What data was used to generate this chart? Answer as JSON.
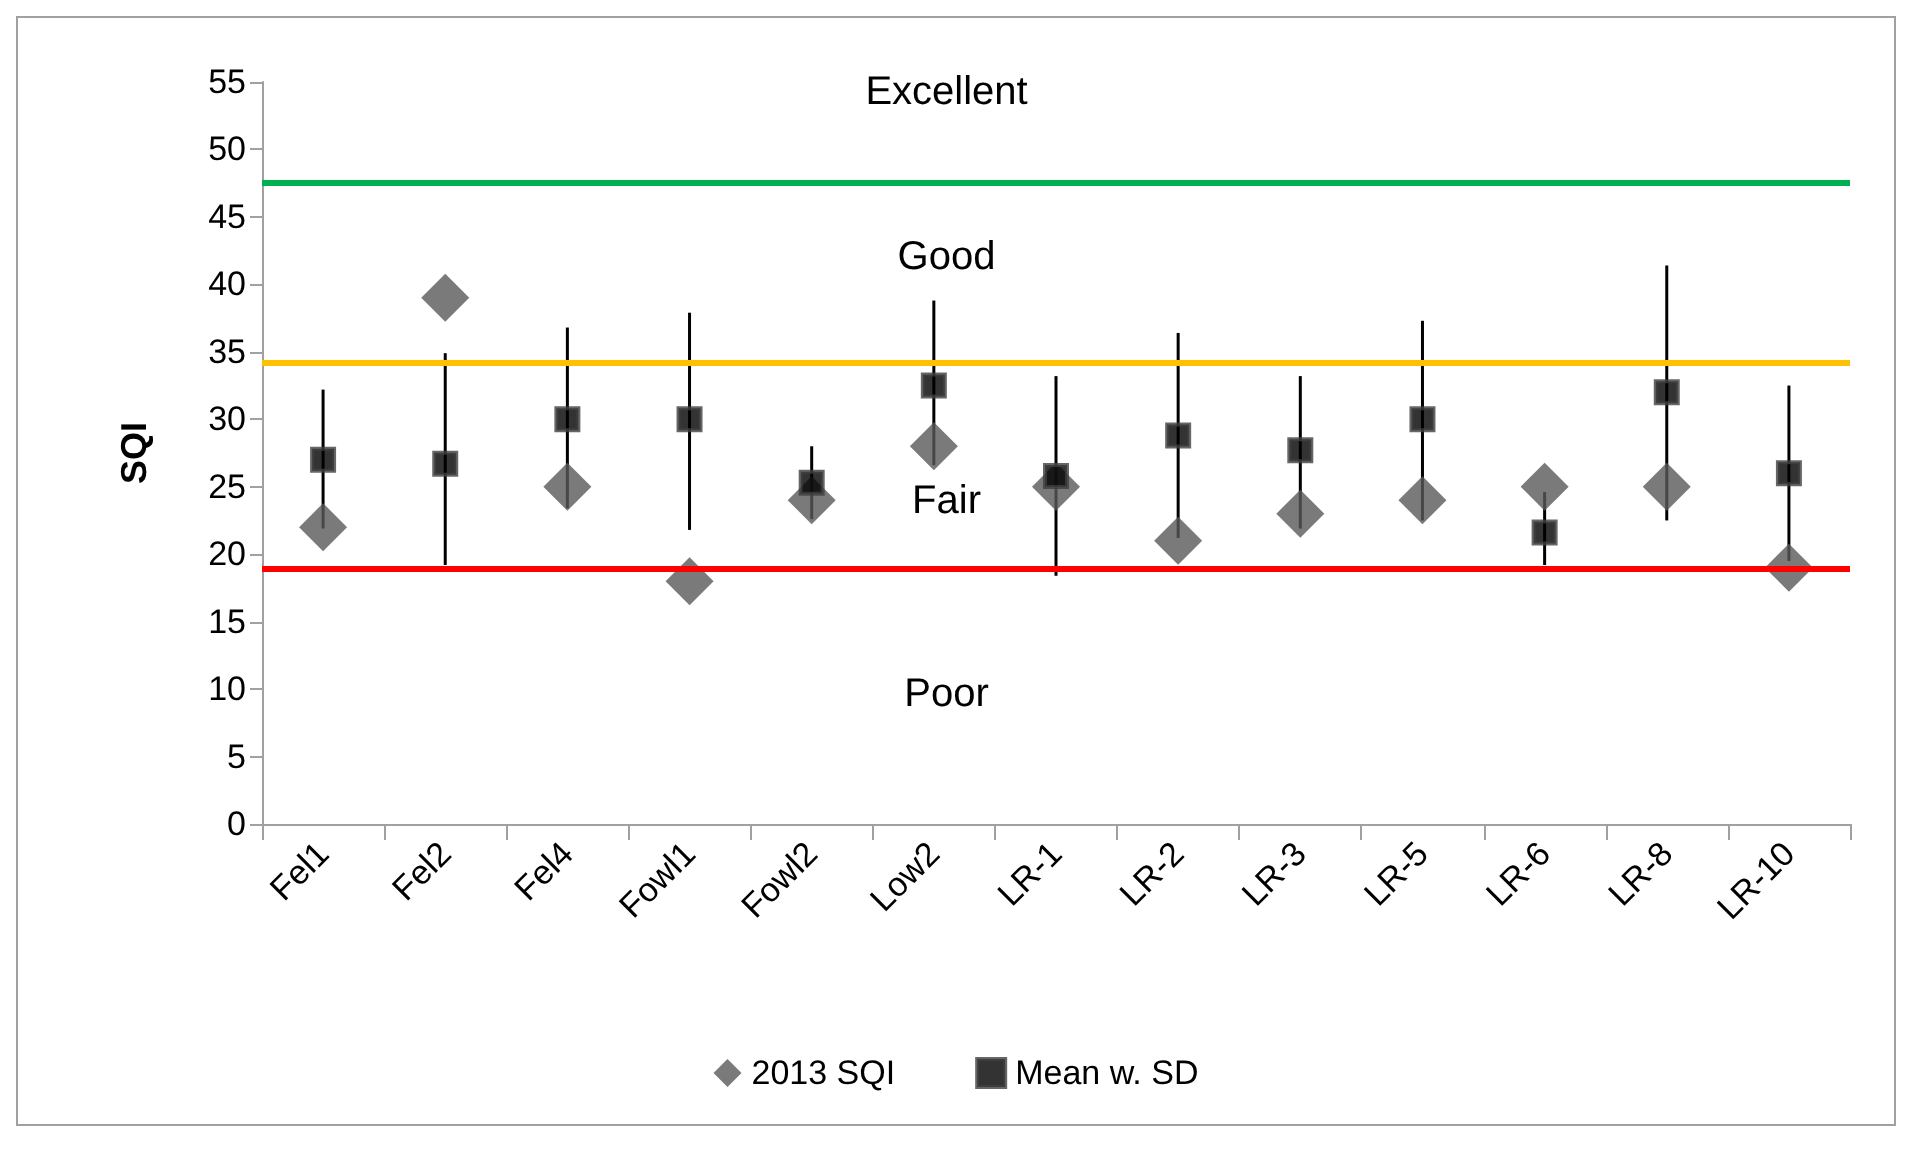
{
  "chart_data": {
    "type": "scatter",
    "ylabel": "SQI",
    "categories": [
      "Fel1",
      "Fel2",
      "Fel4",
      "Fowl1",
      "Fowl2",
      "Low2",
      "LR-1",
      "LR-2",
      "LR-3",
      "LR-5",
      "LR-6",
      "LR-8",
      "LR-10"
    ],
    "series": [
      {
        "name": "2013 SQI",
        "color": "#595959",
        "marker": "diamond",
        "values": [
          22,
          39,
          25,
          18,
          24,
          28,
          25,
          21,
          23,
          24,
          25,
          25,
          19
        ]
      },
      {
        "name": "Mean w. SD",
        "color": "#000000",
        "marker": "square",
        "values": [
          27,
          26.7,
          30,
          30,
          25.3,
          32.5,
          25.8,
          28.8,
          27.7,
          30,
          21.6,
          32,
          26
        ],
        "errors": [
          [
            21.9,
            32.2
          ],
          [
            19.2,
            34.9
          ],
          [
            23.4,
            36.8
          ],
          [
            21.8,
            37.9
          ],
          [
            22.6,
            28
          ],
          [
            26.6,
            38.8
          ],
          [
            18.4,
            33.2
          ],
          [
            21.2,
            36.4
          ],
          [
            21.9,
            33.2
          ],
          [
            22.5,
            37.3
          ],
          [
            19.2,
            24.6
          ],
          [
            22.5,
            41.4
          ],
          [
            19.5,
            32.5
          ]
        ]
      }
    ],
    "ylim": [
      0,
      55
    ],
    "yticks": [
      0,
      5,
      10,
      15,
      20,
      25,
      30,
      35,
      40,
      45,
      50,
      55
    ],
    "ref_lines": [
      {
        "axis": "y",
        "value": 47.5,
        "color": "#00b050"
      },
      {
        "axis": "y",
        "value": 34.2,
        "color": "#ffc000"
      },
      {
        "axis": "y",
        "value": 18.9,
        "color": "#ff0000"
      }
    ],
    "annotations": [
      "Excellent",
      "Good",
      "Fair",
      "Poor"
    ],
    "grid": false,
    "legend": "bottom"
  }
}
